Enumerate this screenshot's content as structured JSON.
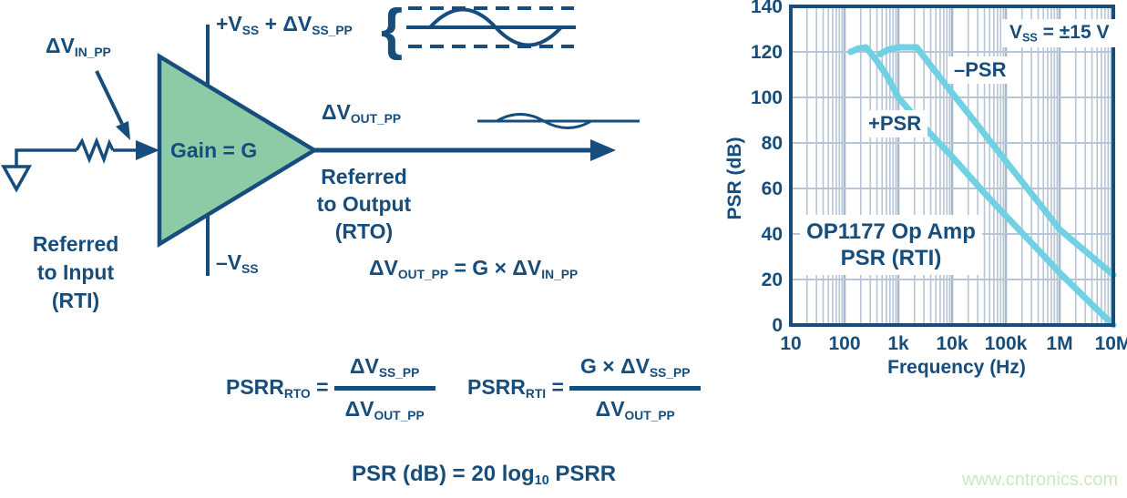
{
  "colors": {
    "navy": "#164D7C",
    "green": "#8CCBA6",
    "cyan": "#6FD1E3",
    "grid_minor": "#B7C5D6",
    "grid_major": "#A7B9CC",
    "watermark": "#CCE9BE"
  },
  "icons": {
    "brace": "{"
  },
  "diagram": {
    "input_label": {
      "b1": "ΔV",
      "s1": "IN_PP"
    },
    "supply_pos": {
      "b1": "+V",
      "s1": "SS",
      "b2": " + ΔV",
      "s2": "SS_PP"
    },
    "supply_neg": {
      "b1": "–V",
      "s1": "SS"
    },
    "gain_label": "Gain = G",
    "output_label": {
      "b1": "ΔV",
      "s1": "OUT_PP"
    },
    "rti": {
      "l1": "Referred",
      "l2": "to Input",
      "l3": "(RTI)"
    },
    "rto": {
      "l1": "Referred",
      "l2": "to Output",
      "l3": "(RTO)"
    }
  },
  "equations": {
    "gain": {
      "b1": "ΔV",
      "s1": "OUT_PP",
      "b2": " = G × ΔV",
      "s2": "IN_PP"
    },
    "psrr_rto": {
      "b1": "PSRR",
      "s1": "RTO",
      "b2": " = ",
      "num_b": "ΔV",
      "num_s": "SS_PP",
      "den_b": "ΔV",
      "den_s": "OUT_PP"
    },
    "psrr_rti": {
      "b1": "PSRR",
      "s1": "RTI",
      "b2": " = ",
      "num_b": "G × ΔV",
      "num_s": "SS_PP",
      "den_b": "ΔV",
      "den_s": "OUT_PP"
    },
    "psr_db": {
      "b1": "PSR (dB) = 20 log",
      "s1": "10",
      "b2": " PSRR"
    }
  },
  "chart_data": {
    "type": "line",
    "title_line1": "OP1177 Op Amp",
    "title_line2": "PSR (RTI)",
    "annotation": {
      "b1": "V",
      "s1": "SS",
      "b2": " = ±15 V"
    },
    "xlabel": "Frequency (Hz)",
    "ylabel": "PSR (dB)",
    "x_scale": "log",
    "x_ticks": [
      "10",
      "100",
      "1k",
      "10k",
      "100k",
      "1M",
      "10M"
    ],
    "y_ticks": [
      "0",
      "20",
      "40",
      "60",
      "80",
      "100",
      "120",
      "140"
    ],
    "xlim_hz": [
      10,
      10000000
    ],
    "ylim_db": [
      0,
      140
    ],
    "grid": true,
    "series": [
      {
        "name": "–PSR",
        "color": "#6FD1E3",
        "points_hz_db": [
          [
            450,
            119
          ],
          [
            650,
            121
          ],
          [
            1000,
            122
          ],
          [
            2200,
            122
          ],
          [
            4000,
            114
          ],
          [
            10000,
            102
          ],
          [
            40000,
            84
          ],
          [
            100000,
            72
          ],
          [
            400000,
            54
          ],
          [
            1000000,
            42
          ],
          [
            4000000,
            30
          ],
          [
            10000000,
            22
          ]
        ]
      },
      {
        "name": "+PSR",
        "color": "#6FD1E3",
        "points_hz_db": [
          [
            130,
            120
          ],
          [
            180,
            121.5
          ],
          [
            250,
            122
          ],
          [
            400,
            116
          ],
          [
            630,
            109
          ],
          [
            1000,
            100
          ],
          [
            2500,
            89
          ],
          [
            10000,
            74
          ],
          [
            40000,
            58
          ],
          [
            100000,
            48
          ],
          [
            400000,
            33
          ],
          [
            1000000,
            23
          ],
          [
            4000000,
            9
          ],
          [
            10000000,
            0
          ]
        ]
      }
    ]
  },
  "watermark": "www.cntronics.com"
}
